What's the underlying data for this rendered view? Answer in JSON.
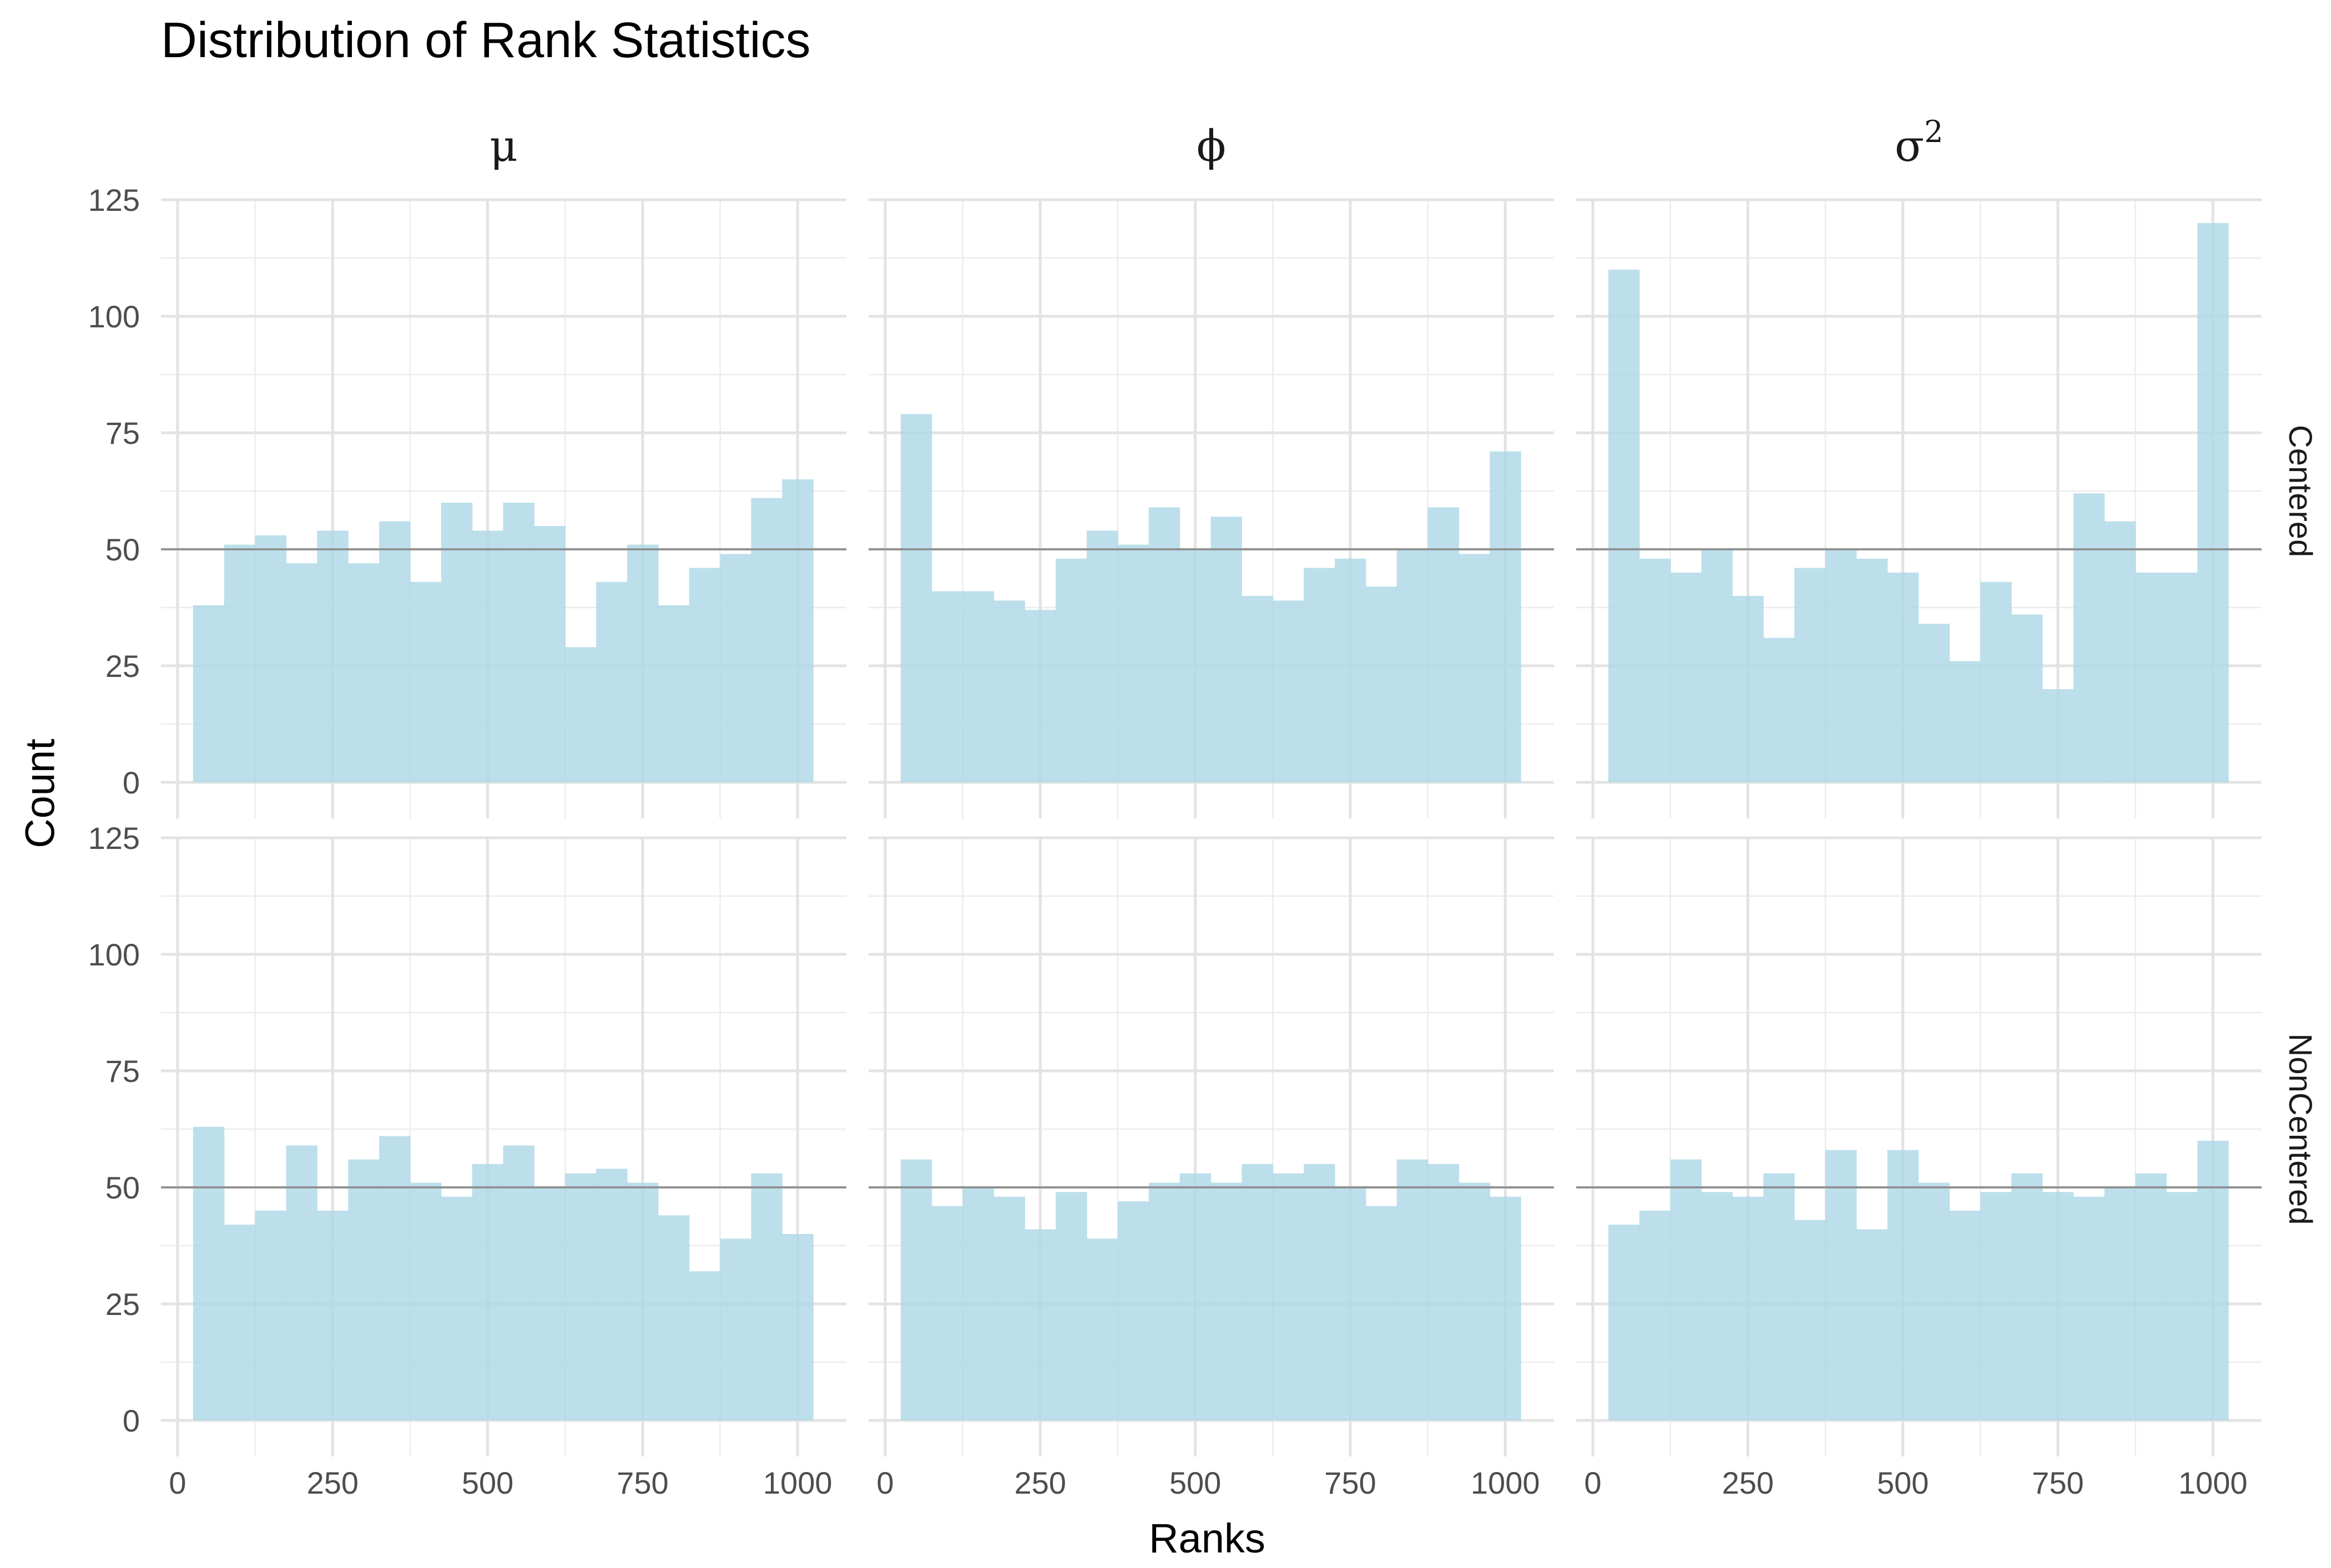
{
  "chart_data": {
    "type": "bar",
    "title": "Distribution of Rank Statistics",
    "xlabel": "Ranks",
    "ylabel": "Count",
    "xlim": [
      0,
      1000
    ],
    "ylim": [
      0,
      125
    ],
    "x_ticks": [
      "0",
      "250",
      "500",
      "750",
      "1000"
    ],
    "y_ticks": [
      "0",
      "25",
      "50",
      "75",
      "100",
      "125"
    ],
    "reference_line": 50,
    "bin_width": 50,
    "bin_starts": [
      25,
      75,
      125,
      175,
      225,
      275,
      325,
      375,
      425,
      475,
      525,
      575,
      625,
      675,
      725,
      775,
      825,
      875,
      925,
      975
    ],
    "bar_color": "#ADD8E6",
    "ref_line_color": "#8c8c8c",
    "grid": true,
    "column_strips": [
      "μ",
      "ϕ",
      "σ2"
    ],
    "row_strips": [
      "Centered",
      "NonCentered"
    ],
    "panels": [
      {
        "row": "Centered",
        "col": "μ",
        "values": [
          38,
          51,
          53,
          47,
          54,
          47,
          56,
          43,
          60,
          54,
          60,
          55,
          29,
          43,
          51,
          38,
          46,
          49,
          61,
          65
        ]
      },
      {
        "row": "Centered",
        "col": "ϕ",
        "values": [
          79,
          41,
          41,
          39,
          37,
          48,
          54,
          51,
          59,
          50,
          57,
          40,
          39,
          46,
          48,
          42,
          50,
          59,
          49,
          71
        ]
      },
      {
        "row": "Centered",
        "col": "σ2",
        "values": [
          110,
          48,
          45,
          50,
          40,
          31,
          46,
          50,
          48,
          45,
          34,
          26,
          43,
          36,
          20,
          62,
          56,
          45,
          45,
          120
        ]
      },
      {
        "row": "NonCentered",
        "col": "μ",
        "values": [
          63,
          42,
          45,
          59,
          45,
          56,
          61,
          51,
          48,
          55,
          59,
          50,
          53,
          54,
          51,
          44,
          32,
          39,
          53,
          40
        ]
      },
      {
        "row": "NonCentered",
        "col": "ϕ",
        "values": [
          56,
          46,
          50,
          48,
          41,
          49,
          39,
          47,
          51,
          53,
          51,
          55,
          53,
          55,
          50,
          46,
          56,
          55,
          51,
          48
        ]
      },
      {
        "row": "NonCentered",
        "col": "σ2",
        "values": [
          42,
          45,
          56,
          49,
          48,
          53,
          43,
          58,
          41,
          58,
          51,
          45,
          49,
          53,
          49,
          48,
          50,
          53,
          49,
          60
        ]
      }
    ]
  }
}
